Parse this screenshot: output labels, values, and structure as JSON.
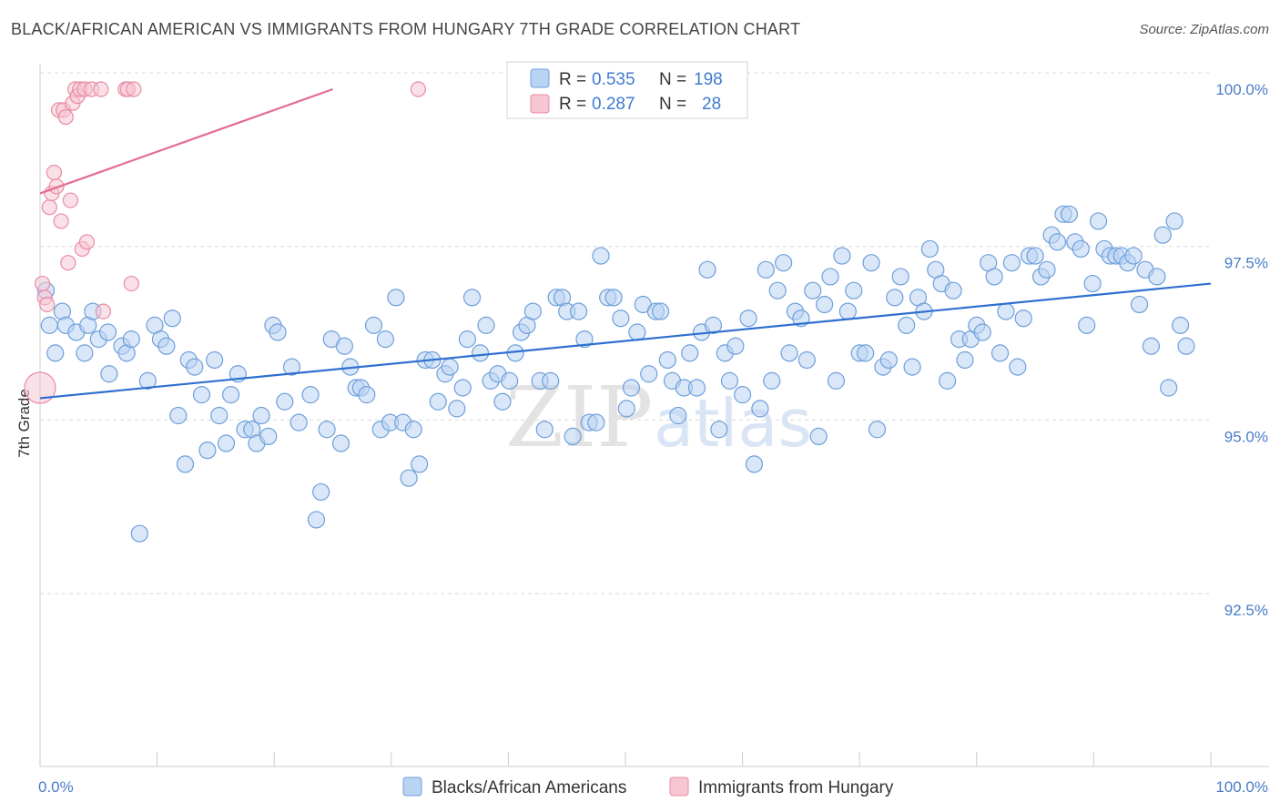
{
  "title": "BLACK/AFRICAN AMERICAN VS IMMIGRANTS FROM HUNGARY 7TH GRADE CORRELATION CHART",
  "source": "Source: ZipAtlas.com",
  "watermark": {
    "zip": "ZIP",
    "atlas": "atlas"
  },
  "colors": {
    "blue_fill": "#b9d3f3",
    "blue_stroke": "#6e9fdb",
    "blue_line": "#2f6fd0",
    "pink_fill": "#f6c6d3",
    "pink_stroke": "#e98ba6",
    "pink_line": "#e36c94",
    "grid": "#d9d9d9",
    "axis_text": "#4a7cc9"
  },
  "legend": {
    "rows": [
      {
        "r_label": "R =",
        "r_value": "0.535",
        "n_label": "N =",
        "n_value": "198",
        "color": "blue"
      },
      {
        "r_label": "R =",
        "r_value": "0.287",
        "n_label": "N =",
        "n_value": "28",
        "color": "pink"
      }
    ]
  },
  "chart_data": {
    "type": "scatter",
    "title": "BLACK/AFRICAN AMERICAN VS IMMIGRANTS FROM HUNGARY 7TH GRADE CORRELATION CHART",
    "xlabel": "",
    "ylabel": "7th Grade",
    "xlim": [
      0,
      100
    ],
    "ylim": [
      90.0,
      100.25
    ],
    "x_tick_labels": [
      {
        "value": 0,
        "label": "0.0%"
      },
      {
        "value": 100,
        "label": "100.0%"
      }
    ],
    "y_tick_labels": [
      {
        "value": 100.0,
        "label": "100.0%"
      },
      {
        "value": 97.5,
        "label": "97.5%"
      },
      {
        "value": 95.0,
        "label": "95.0%"
      },
      {
        "value": 92.5,
        "label": "92.5%"
      }
    ],
    "grid": "horizontal dashed",
    "legend_placement": "top-center",
    "series": [
      {
        "name": "Blacks/African Americans",
        "color": "blue",
        "trend": {
          "x": [
            0,
            100
          ],
          "y": [
            95.55,
            97.2
          ]
        },
        "points": [
          [
            0.5,
            97.1
          ],
          [
            0.8,
            96.6
          ],
          [
            1.3,
            96.2
          ],
          [
            1.9,
            96.8
          ],
          [
            2.2,
            96.6
          ],
          [
            3.1,
            96.5
          ],
          [
            3.8,
            96.2
          ],
          [
            4.1,
            96.6
          ],
          [
            4.5,
            96.8
          ],
          [
            5.0,
            96.4
          ],
          [
            5.8,
            96.5
          ],
          [
            5.9,
            95.9
          ],
          [
            7.0,
            96.3
          ],
          [
            7.4,
            96.2
          ],
          [
            7.8,
            96.4
          ],
          [
            8.5,
            93.6
          ],
          [
            9.2,
            95.8
          ],
          [
            9.8,
            96.6
          ],
          [
            10.3,
            96.4
          ],
          [
            10.8,
            96.3
          ],
          [
            11.3,
            96.7
          ],
          [
            11.8,
            95.3
          ],
          [
            12.4,
            94.6
          ],
          [
            12.7,
            96.1
          ],
          [
            13.2,
            96.0
          ],
          [
            13.8,
            95.6
          ],
          [
            14.3,
            94.8
          ],
          [
            14.9,
            96.1
          ],
          [
            15.3,
            95.3
          ],
          [
            15.9,
            94.9
          ],
          [
            16.3,
            95.6
          ],
          [
            16.9,
            95.9
          ],
          [
            17.5,
            95.1
          ],
          [
            18.1,
            95.1
          ],
          [
            18.5,
            94.9
          ],
          [
            18.9,
            95.3
          ],
          [
            19.5,
            95.0
          ],
          [
            19.9,
            96.6
          ],
          [
            20.3,
            96.5
          ],
          [
            20.9,
            95.5
          ],
          [
            21.5,
            96.0
          ],
          [
            22.1,
            95.2
          ],
          [
            23.1,
            95.6
          ],
          [
            23.6,
            93.8
          ],
          [
            24.0,
            94.2
          ],
          [
            24.5,
            95.1
          ],
          [
            24.9,
            96.4
          ],
          [
            25.7,
            94.9
          ],
          [
            26.0,
            96.3
          ],
          [
            26.5,
            96.0
          ],
          [
            27.0,
            95.7
          ],
          [
            27.4,
            95.7
          ],
          [
            27.9,
            95.6
          ],
          [
            28.5,
            96.6
          ],
          [
            29.1,
            95.1
          ],
          [
            29.5,
            96.4
          ],
          [
            29.9,
            95.2
          ],
          [
            30.4,
            97.0
          ],
          [
            31.0,
            95.2
          ],
          [
            31.5,
            94.4
          ],
          [
            31.9,
            95.1
          ],
          [
            32.4,
            94.6
          ],
          [
            32.9,
            96.1
          ],
          [
            33.5,
            96.1
          ],
          [
            34.0,
            95.5
          ],
          [
            34.6,
            95.9
          ],
          [
            35.0,
            96.0
          ],
          [
            35.6,
            95.4
          ],
          [
            36.1,
            95.7
          ],
          [
            36.5,
            96.4
          ],
          [
            36.9,
            97.0
          ],
          [
            37.6,
            96.2
          ],
          [
            38.1,
            96.6
          ],
          [
            38.5,
            95.8
          ],
          [
            39.1,
            95.9
          ],
          [
            39.5,
            95.5
          ],
          [
            40.1,
            95.8
          ],
          [
            40.6,
            96.2
          ],
          [
            41.1,
            96.5
          ],
          [
            41.6,
            96.6
          ],
          [
            42.1,
            96.8
          ],
          [
            42.7,
            95.8
          ],
          [
            43.1,
            95.1
          ],
          [
            43.6,
            95.8
          ],
          [
            44.1,
            97.0
          ],
          [
            44.6,
            97.0
          ],
          [
            45.0,
            96.8
          ],
          [
            45.5,
            95.0
          ],
          [
            46.0,
            96.8
          ],
          [
            46.5,
            96.4
          ],
          [
            46.9,
            95.2
          ],
          [
            47.5,
            95.2
          ],
          [
            47.9,
            97.6
          ],
          [
            48.5,
            97.0
          ],
          [
            49.0,
            97.0
          ],
          [
            49.6,
            96.7
          ],
          [
            50.1,
            95.4
          ],
          [
            50.5,
            95.7
          ],
          [
            51.0,
            96.5
          ],
          [
            51.5,
            96.9
          ],
          [
            52.0,
            95.9
          ],
          [
            52.6,
            96.8
          ],
          [
            53.0,
            96.8
          ],
          [
            53.6,
            96.1
          ],
          [
            54.0,
            95.8
          ],
          [
            54.5,
            95.3
          ],
          [
            55.0,
            95.7
          ],
          [
            55.5,
            96.2
          ],
          [
            56.1,
            95.7
          ],
          [
            56.5,
            96.5
          ],
          [
            57.0,
            97.4
          ],
          [
            57.5,
            96.6
          ],
          [
            58.0,
            95.1
          ],
          [
            58.5,
            96.2
          ],
          [
            58.9,
            95.8
          ],
          [
            59.4,
            96.3
          ],
          [
            60.0,
            95.6
          ],
          [
            60.5,
            96.7
          ],
          [
            61.0,
            94.6
          ],
          [
            61.5,
            95.4
          ],
          [
            62.0,
            97.4
          ],
          [
            62.5,
            95.8
          ],
          [
            63.0,
            97.1
          ],
          [
            63.5,
            97.5
          ],
          [
            64.0,
            96.2
          ],
          [
            64.5,
            96.8
          ],
          [
            65.0,
            96.7
          ],
          [
            65.5,
            96.1
          ],
          [
            66.0,
            97.1
          ],
          [
            66.5,
            95.0
          ],
          [
            67.0,
            96.9
          ],
          [
            67.5,
            97.3
          ],
          [
            68.0,
            95.8
          ],
          [
            68.5,
            97.6
          ],
          [
            69.0,
            96.8
          ],
          [
            69.5,
            97.1
          ],
          [
            70.0,
            96.2
          ],
          [
            70.5,
            96.2
          ],
          [
            71.0,
            97.5
          ],
          [
            71.5,
            95.1
          ],
          [
            72.0,
            96.0
          ],
          [
            72.5,
            96.1
          ],
          [
            73.0,
            97.0
          ],
          [
            73.5,
            97.3
          ],
          [
            74.0,
            96.6
          ],
          [
            74.5,
            96.0
          ],
          [
            75.0,
            97.0
          ],
          [
            75.5,
            96.8
          ],
          [
            76.0,
            97.7
          ],
          [
            76.5,
            97.4
          ],
          [
            77.0,
            97.2
          ],
          [
            77.5,
            95.8
          ],
          [
            78.0,
            97.1
          ],
          [
            78.5,
            96.4
          ],
          [
            79.0,
            96.1
          ],
          [
            79.5,
            96.4
          ],
          [
            80.0,
            96.6
          ],
          [
            80.5,
            96.5
          ],
          [
            81.0,
            97.5
          ],
          [
            81.5,
            97.3
          ],
          [
            82.0,
            96.2
          ],
          [
            82.5,
            96.8
          ],
          [
            83.0,
            97.5
          ],
          [
            83.5,
            96.0
          ],
          [
            84.0,
            96.7
          ],
          [
            84.5,
            97.6
          ],
          [
            85.0,
            97.6
          ],
          [
            85.5,
            97.3
          ],
          [
            86.0,
            97.4
          ],
          [
            86.4,
            97.9
          ],
          [
            86.9,
            97.8
          ],
          [
            87.4,
            98.2
          ],
          [
            87.9,
            98.2
          ],
          [
            88.4,
            97.8
          ],
          [
            88.9,
            97.7
          ],
          [
            89.4,
            96.6
          ],
          [
            89.9,
            97.2
          ],
          [
            90.4,
            98.1
          ],
          [
            90.9,
            97.7
          ],
          [
            91.4,
            97.6
          ],
          [
            91.9,
            97.6
          ],
          [
            92.4,
            97.6
          ],
          [
            92.9,
            97.5
          ],
          [
            93.4,
            97.6
          ],
          [
            93.9,
            96.9
          ],
          [
            94.4,
            97.4
          ],
          [
            94.9,
            96.3
          ],
          [
            95.4,
            97.3
          ],
          [
            95.9,
            97.9
          ],
          [
            96.4,
            95.7
          ],
          [
            96.9,
            98.1
          ],
          [
            97.4,
            96.6
          ],
          [
            97.9,
            96.3
          ]
        ]
      },
      {
        "name": "Immigrants from Hungary",
        "color": "pink",
        "trend": {
          "x": [
            0,
            25
          ],
          "y": [
            98.5,
            100.0
          ]
        },
        "points": [
          [
            0.2,
            97.2
          ],
          [
            0.4,
            97.0
          ],
          [
            0.6,
            96.9
          ],
          [
            0.8,
            98.3
          ],
          [
            1.0,
            98.5
          ],
          [
            1.2,
            98.8
          ],
          [
            1.4,
            98.6
          ],
          [
            1.6,
            99.7
          ],
          [
            1.8,
            98.1
          ],
          [
            2.0,
            99.7
          ],
          [
            2.2,
            99.6
          ],
          [
            2.4,
            97.5
          ],
          [
            2.6,
            98.4
          ],
          [
            2.8,
            99.8
          ],
          [
            3.0,
            100.0
          ],
          [
            3.2,
            99.9
          ],
          [
            3.4,
            100.0
          ],
          [
            3.6,
            97.7
          ],
          [
            3.8,
            100.0
          ],
          [
            4.0,
            97.8
          ],
          [
            4.4,
            100.0
          ],
          [
            5.2,
            100.0
          ],
          [
            5.4,
            96.8
          ],
          [
            7.3,
            100.0
          ],
          [
            7.5,
            100.0
          ],
          [
            7.8,
            97.2
          ],
          [
            8.0,
            100.0
          ],
          [
            32.3,
            100.0
          ]
        ]
      }
    ]
  },
  "bottom_legend": [
    {
      "label": "Blacks/African Americans",
      "color": "blue"
    },
    {
      "label": "Immigrants from Hungary",
      "color": "pink"
    }
  ]
}
